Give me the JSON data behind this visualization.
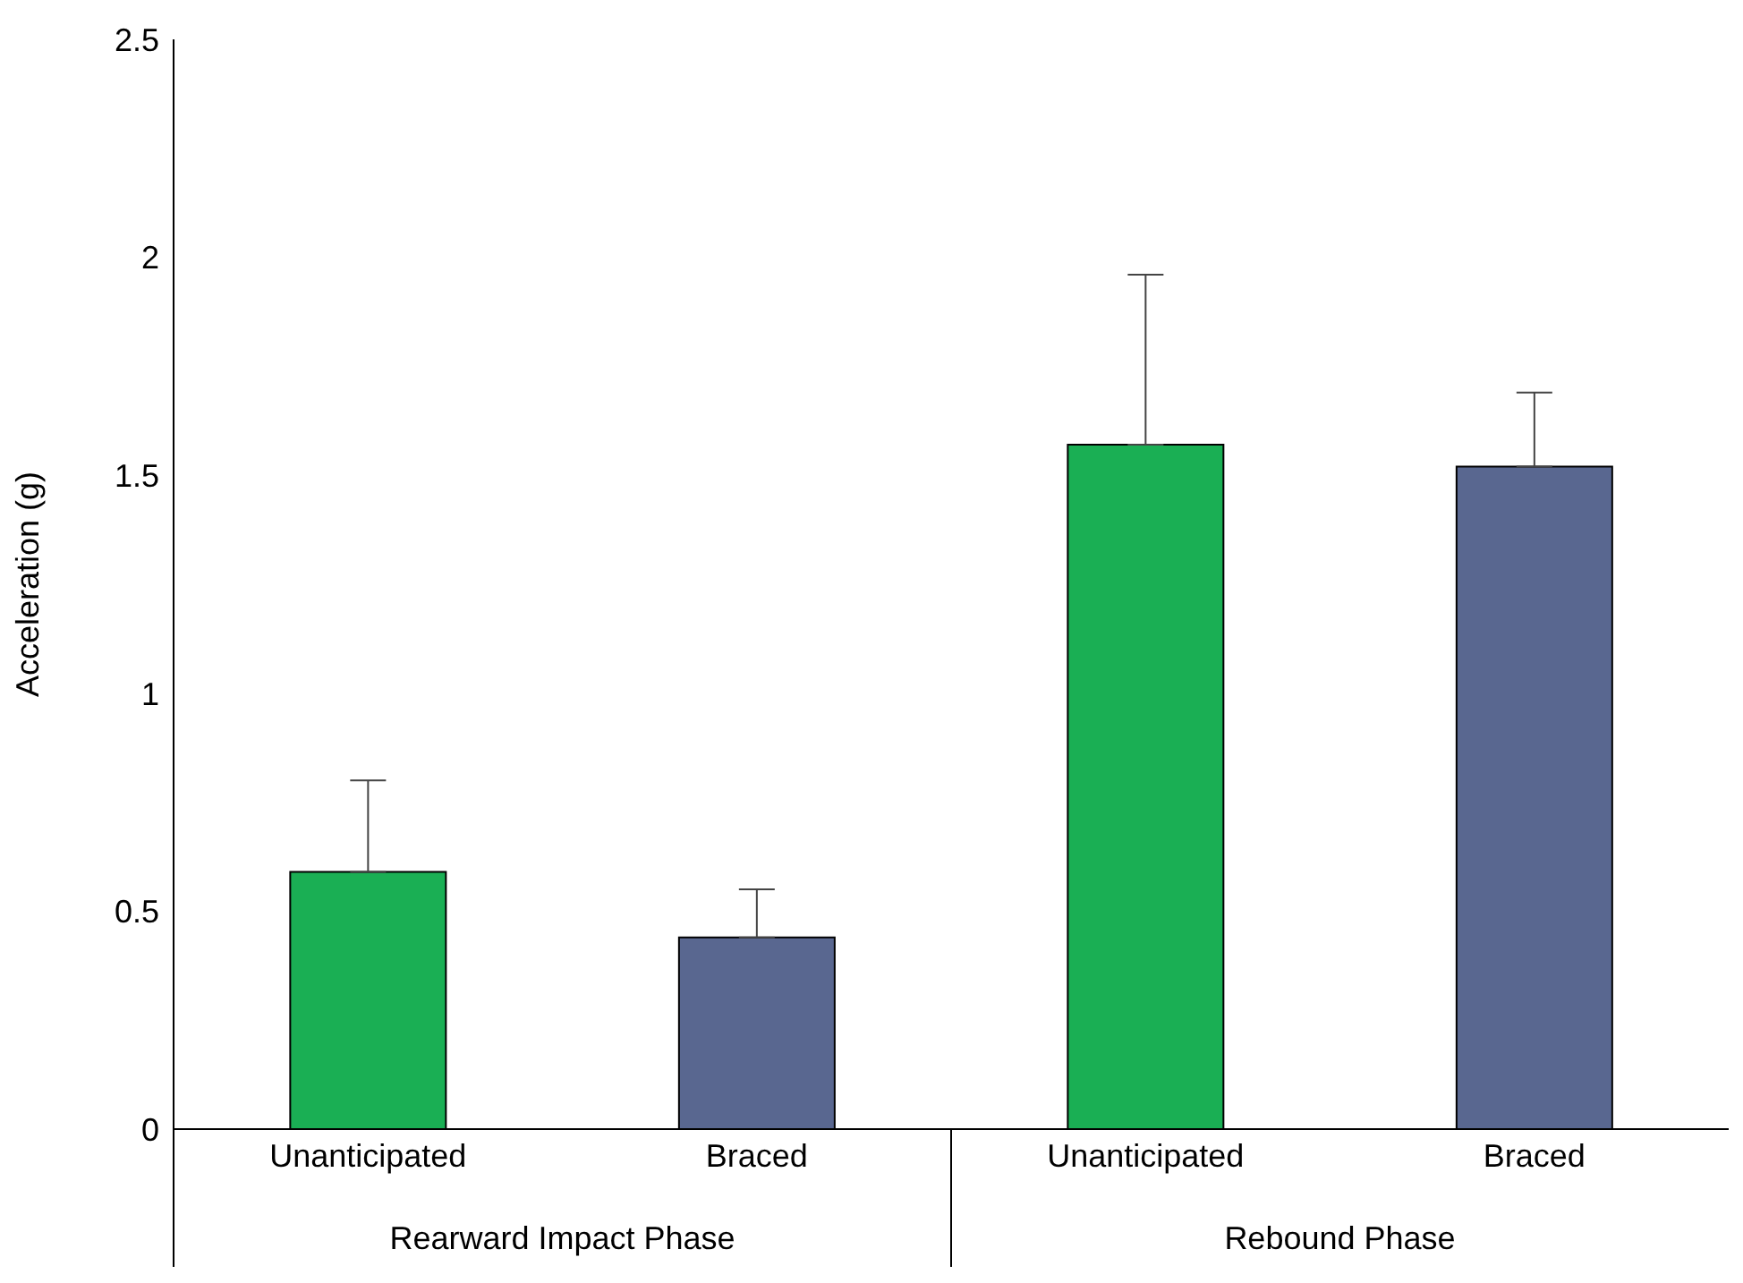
{
  "chart_data": {
    "type": "bar",
    "ylabel": "Acceleration (g)",
    "categories": [
      "Unanticipated",
      "Braced",
      "Unanticipated",
      "Braced"
    ],
    "values": [
      0.59,
      0.44,
      1.57,
      1.52
    ],
    "errors": [
      0.21,
      0.11,
      0.39,
      0.17
    ],
    "colors": [
      "#1aaf54",
      "#596790",
      "#1aaf54",
      "#596790"
    ],
    "ylim": [
      0,
      2.5
    ],
    "yticks": [
      0,
      0.5,
      1,
      1.5,
      2,
      2.5
    ],
    "grid": false,
    "legend": false,
    "annotations": [
      "Rearward Impact Phase",
      "Rebound Phase"
    ]
  }
}
